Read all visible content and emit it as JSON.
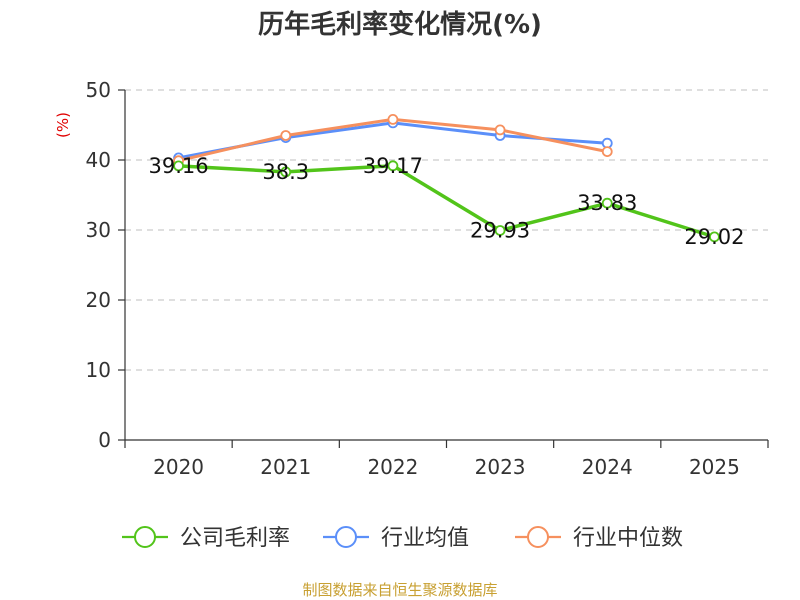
{
  "chart_data": {
    "type": "line",
    "title": "历年毛利率变化情况(%)",
    "ylabel": "(%)",
    "xlabel": "",
    "categories": [
      "2020",
      "2021",
      "2022",
      "2023",
      "2024",
      "2025"
    ],
    "ylim": [
      0,
      50
    ],
    "yticks": [
      0,
      10,
      20,
      30,
      40,
      50
    ],
    "grid": true,
    "legend_position": "bottom",
    "series": [
      {
        "name": "公司毛利率",
        "color": "#52c41a",
        "values": [
          39.16,
          38.3,
          39.17,
          29.93,
          33.83,
          29.02
        ],
        "labels": [
          "39.16",
          "38.3",
          "39.17",
          "29.93",
          "33.83",
          "29.02"
        ]
      },
      {
        "name": "行业均值",
        "color": "#5b8ff9",
        "values": [
          40.3,
          43.2,
          45.3,
          43.5,
          42.4,
          null
        ]
      },
      {
        "name": "行业中位数",
        "color": "#f6905e",
        "values": [
          39.9,
          43.5,
          45.8,
          44.3,
          41.2,
          null
        ]
      }
    ]
  },
  "source": "制图数据来自恒生聚源数据库",
  "colors": {
    "ylabel": "#e00000",
    "source": "#c8a032",
    "grid": "#cccccc",
    "axis": "#333333"
  }
}
